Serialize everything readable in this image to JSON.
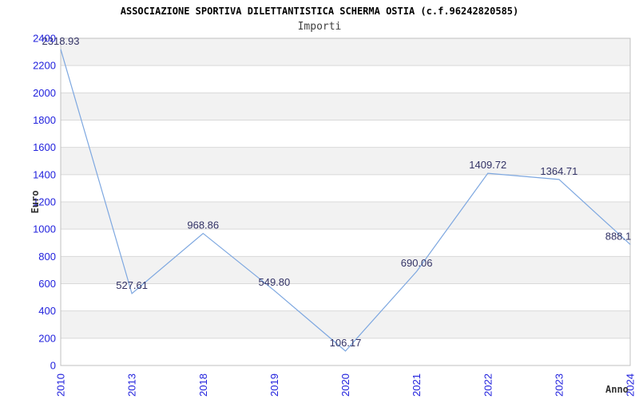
{
  "header": {
    "title": "ASSOCIAZIONE SPORTIVA DILETTANTISTICA SCHERMA OSTIA (c.f.96242820585)",
    "subtitle": "Importi"
  },
  "chart_data": {
    "type": "line",
    "title": "ASSOCIAZIONE SPORTIVA DILETTANTISTICA SCHERMA OSTIA (c.f.96242820585)",
    "subtitle": "Importi",
    "xlabel": "Anno",
    "ylabel": "Euro",
    "categories": [
      "2010",
      "2013",
      "2018",
      "2019",
      "2020",
      "2021",
      "2022",
      "2023",
      "2024"
    ],
    "values": [
      2318.93,
      527.61,
      968.86,
      549.8,
      106.17,
      690.06,
      1409.72,
      1364.71,
      888.1
    ],
    "point_labels": [
      "2318.93",
      "527.61",
      "968.86",
      "549.80",
      "106.17",
      "690.06",
      "1409.72",
      "1364.71",
      "888.1"
    ],
    "ylim": [
      0,
      2400
    ],
    "ytick_step": 200,
    "grid": true,
    "legend": "none",
    "band_alternating": true,
    "colors": {
      "line": "#7da7e0",
      "tick_label": "#2121dd",
      "data_label": "#333366",
      "band": "#f2f2f2",
      "gridline": "#d9d9d9",
      "plot_border": "#c0c0c0",
      "axis_label": "#333333",
      "title": "#000000",
      "subtitle": "#404040"
    }
  }
}
